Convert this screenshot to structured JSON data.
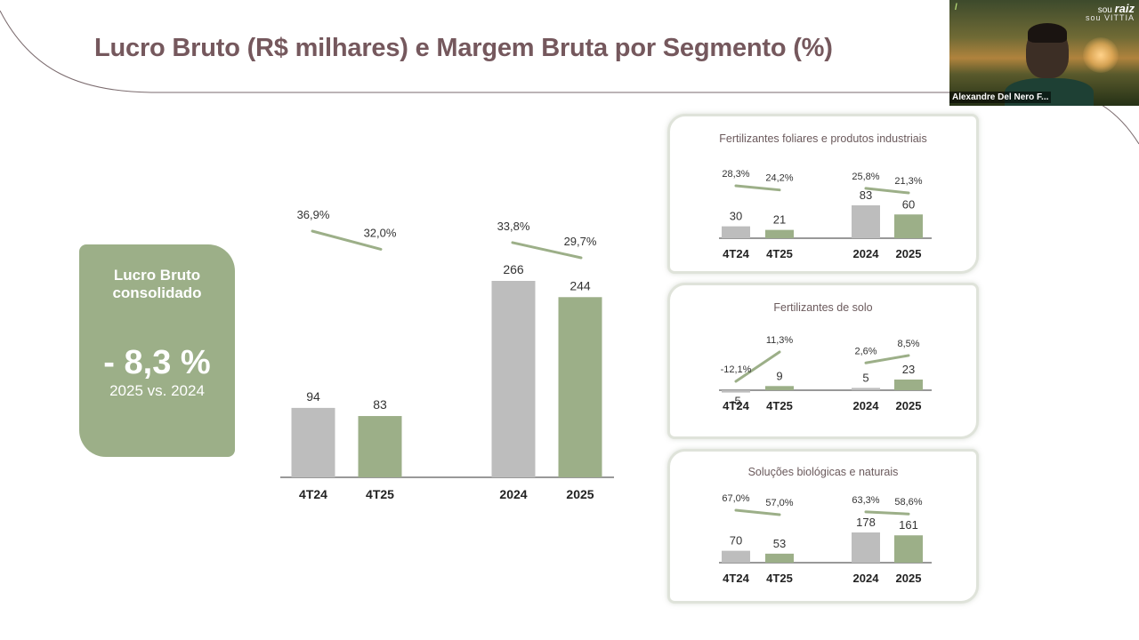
{
  "slide": {
    "title": "Lucro Bruto (R$ milhares) e Margem Bruta por Segmento (%)"
  },
  "kpi": {
    "title": "Lucro Bruto consolidado",
    "value": "- 8,3 %",
    "subtitle": "2025 vs. 2024"
  },
  "video": {
    "participant_name": "Alexandre Del Nero F...",
    "logo_line1_prefix": "sou",
    "logo_line1_word": "raiz",
    "logo_line2": "sou VITTIA",
    "logo_mark": "/"
  },
  "colors": {
    "gray_bar": "#bdbdbd",
    "green_bar": "#9caf88",
    "title": "#75585d",
    "margin_line": "#9caf88"
  },
  "chart_data": [
    {
      "id": "consolidated",
      "type": "bar",
      "title": "",
      "categories": [
        "4T24",
        "4T25",
        "2024",
        "2025"
      ],
      "series": [
        {
          "values": [
            94,
            83,
            266,
            244
          ]
        }
      ],
      "value_labels": [
        "94",
        "83",
        "266",
        "244"
      ],
      "margins": [
        36.9,
        32.0,
        33.8,
        29.7
      ],
      "margin_labels": [
        "36,9%",
        "32,0%",
        "33,8%",
        "29,7%"
      ],
      "bar_colors": [
        "#bdbdbd",
        "#9caf88",
        "#bdbdbd",
        "#9caf88"
      ],
      "ylim": [
        0,
        290
      ]
    },
    {
      "id": "foliar",
      "type": "bar",
      "title": "Fertilizantes foliares e produtos industriais",
      "categories": [
        "4T24",
        "4T25",
        "2024",
        "2025"
      ],
      "series": [
        {
          "values": [
            30,
            21,
            83,
            60
          ]
        }
      ],
      "value_labels": [
        "30",
        "21",
        "83",
        "60"
      ],
      "margins": [
        28.3,
        24.2,
        25.8,
        21.3
      ],
      "margin_labels": [
        "28,3%",
        "24,2%",
        "25,8%",
        "21,3%"
      ],
      "bar_colors": [
        "#bdbdbd",
        "#9caf88",
        "#bdbdbd",
        "#9caf88"
      ]
    },
    {
      "id": "solo",
      "type": "bar",
      "title": "Fertilizantes de solo",
      "categories": [
        "4T24",
        "4T25",
        "2024",
        "2025"
      ],
      "series": [
        {
          "values": [
            -5,
            9,
            5,
            23
          ]
        }
      ],
      "value_labels": [
        "-5",
        "9",
        "5",
        "23"
      ],
      "margins": [
        -12.1,
        11.3,
        2.6,
        8.5
      ],
      "margin_labels": [
        "-12,1%",
        "11,3%",
        "2,6%",
        "8,5%"
      ],
      "bar_colors": [
        "#bdbdbd",
        "#9caf88",
        "#bdbdbd",
        "#9caf88"
      ]
    },
    {
      "id": "biologicas",
      "type": "bar",
      "title": "Soluções biológicas e naturais",
      "categories": [
        "4T24",
        "4T25",
        "2024",
        "2025"
      ],
      "series": [
        {
          "values": [
            70,
            53,
            178,
            161
          ]
        }
      ],
      "value_labels": [
        "70",
        "53",
        "178",
        "161"
      ],
      "margins": [
        67.0,
        57.0,
        63.3,
        58.6
      ],
      "margin_labels": [
        "67,0%",
        "57,0%",
        "63,3%",
        "58,6%"
      ],
      "bar_colors": [
        "#bdbdbd",
        "#9caf88",
        "#bdbdbd",
        "#9caf88"
      ]
    }
  ]
}
